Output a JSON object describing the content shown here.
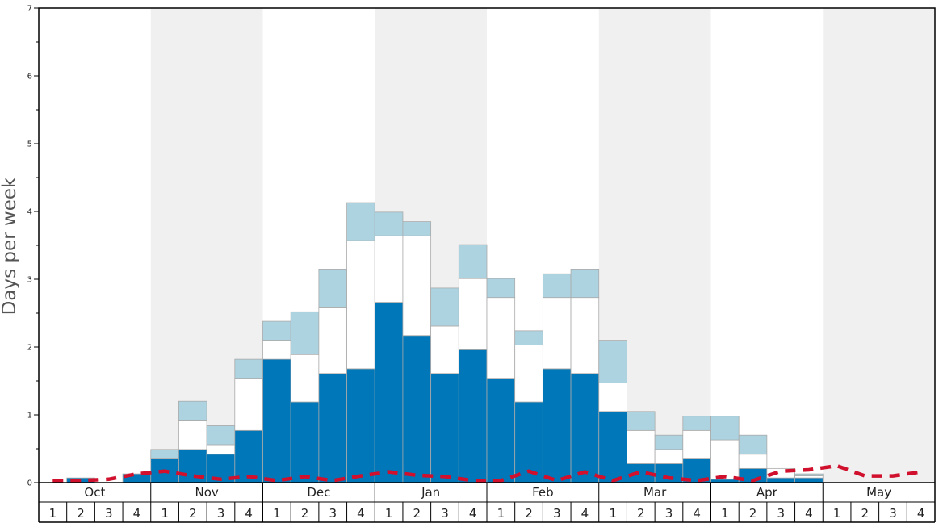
{
  "chart_data": {
    "type": "bar",
    "title": "",
    "xlabel": "",
    "ylabel": "Days per week",
    "ylim": [
      0,
      7
    ],
    "y_ticks": [
      "0",
      "1",
      "2",
      "3",
      "4",
      "5",
      "6",
      "7"
    ],
    "months": [
      "Oct",
      "Nov",
      "Dec",
      "Jan",
      "Feb",
      "Mar",
      "Apr",
      "May"
    ],
    "weeks": [
      "1",
      "2",
      "3",
      "4"
    ],
    "stacked": true,
    "colors": {
      "bottom": "#0077b8",
      "middle": "#ffffff",
      "top": "#add3e0",
      "line": "#d0102c",
      "band": "#f0f0f0",
      "bar_edge": "#aaaaaa"
    },
    "series": [
      {
        "values": [
          0,
          0.07,
          0,
          0.13,
          0.35,
          0.49,
          0.42,
          0.77,
          1.82,
          1.19,
          1.61,
          1.68,
          2.66,
          2.17,
          1.61,
          1.96,
          1.54,
          1.19,
          1.68,
          1.61,
          1.05,
          0.28,
          0.28,
          0.35,
          0.05,
          0.21,
          0.07,
          0.07,
          0,
          0,
          0,
          0
        ]
      },
      {
        "values": [
          0,
          0,
          0,
          0,
          0,
          0.42,
          0.14,
          0.77,
          0.28,
          0.7,
          0.98,
          1.89,
          0.98,
          1.47,
          0.7,
          1.05,
          1.19,
          0.84,
          1.05,
          1.12,
          0.42,
          0.49,
          0.21,
          0.42,
          0.58,
          0.21,
          0.14,
          0.03,
          0,
          0,
          0,
          0
        ]
      },
      {
        "values": [
          0,
          0,
          0,
          0,
          0.14,
          0.29,
          0.28,
          0.28,
          0.28,
          0.63,
          0.56,
          0.56,
          0.35,
          0.21,
          0.56,
          0.5,
          0.28,
          0.21,
          0.35,
          0.42,
          0.63,
          0.28,
          0.21,
          0.21,
          0.35,
          0.28,
          0,
          0.03,
          0,
          0,
          0,
          0
        ]
      },
      {
        "values": [
          0.03,
          0.03,
          0.05,
          0.13,
          0.17,
          0.1,
          0.05,
          0.09,
          0.03,
          0.09,
          0.03,
          0.1,
          0.16,
          0.11,
          0.09,
          0.03,
          0.03,
          0.17,
          0.03,
          0.16,
          0.03,
          0.16,
          0.07,
          0.03,
          0.09,
          0.03,
          0.17,
          0.19,
          0.25,
          0.1,
          0.1,
          0.16
        ]
      }
    ]
  }
}
